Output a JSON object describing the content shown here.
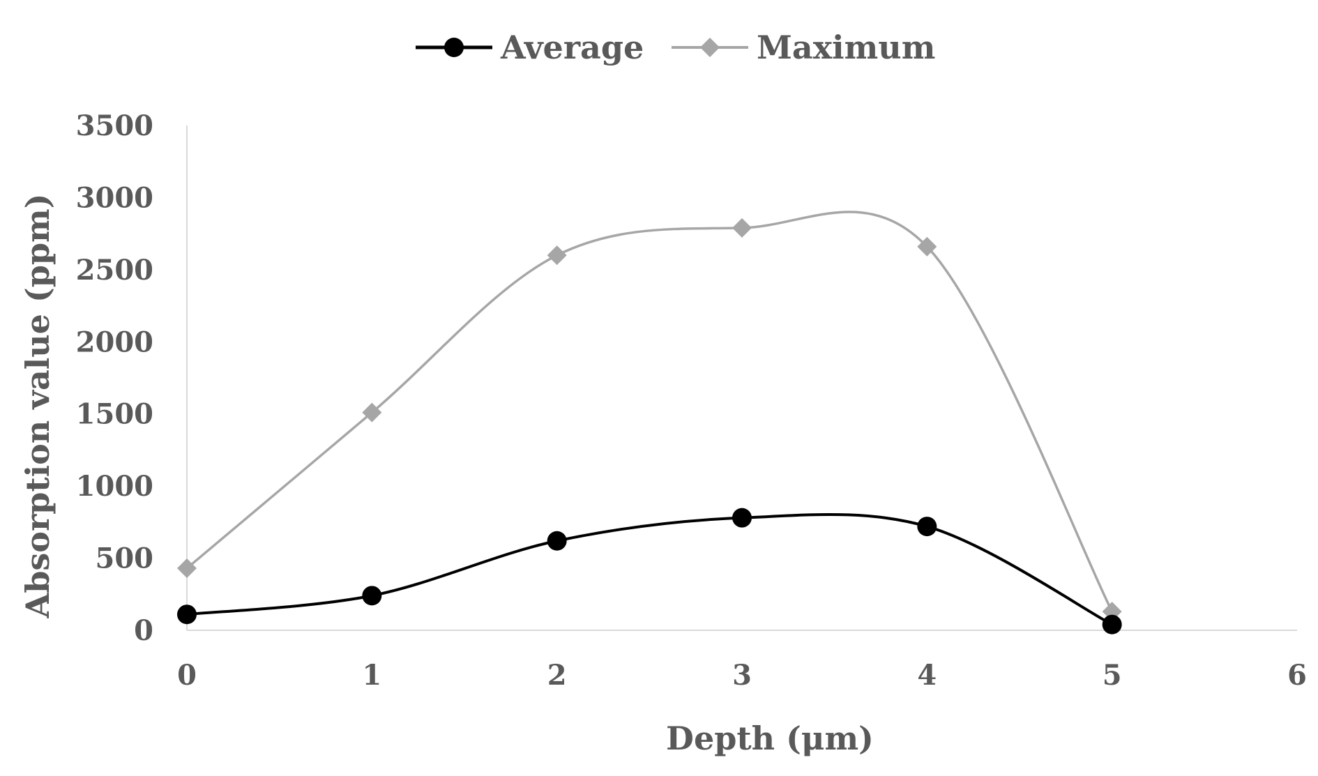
{
  "chart_data": {
    "type": "line",
    "title": "",
    "xlabel": "Depth (μm)",
    "ylabel": "Absorption value (ppm)",
    "xlim": [
      0,
      6
    ],
    "ylim": [
      0,
      3500
    ],
    "xticks": [
      "0",
      "1",
      "2",
      "3",
      "4",
      "5",
      "6"
    ],
    "yticks": [
      "0",
      "500",
      "1000",
      "1500",
      "2000",
      "2500",
      "3000",
      "3500"
    ],
    "grid": false,
    "legend_position": "top-center",
    "smooth": true,
    "series": [
      {
        "name": "Average",
        "marker": "circle",
        "color": "#000000",
        "x": [
          0,
          1,
          2,
          3,
          4,
          5
        ],
        "values": [
          110,
          240,
          620,
          780,
          720,
          40
        ]
      },
      {
        "name": "Maximum",
        "marker": "diamond",
        "color": "#a6a6a6",
        "x": [
          0,
          1,
          2,
          3,
          4,
          5
        ],
        "values": [
          430,
          1510,
          2600,
          2790,
          2660,
          130
        ]
      }
    ]
  }
}
